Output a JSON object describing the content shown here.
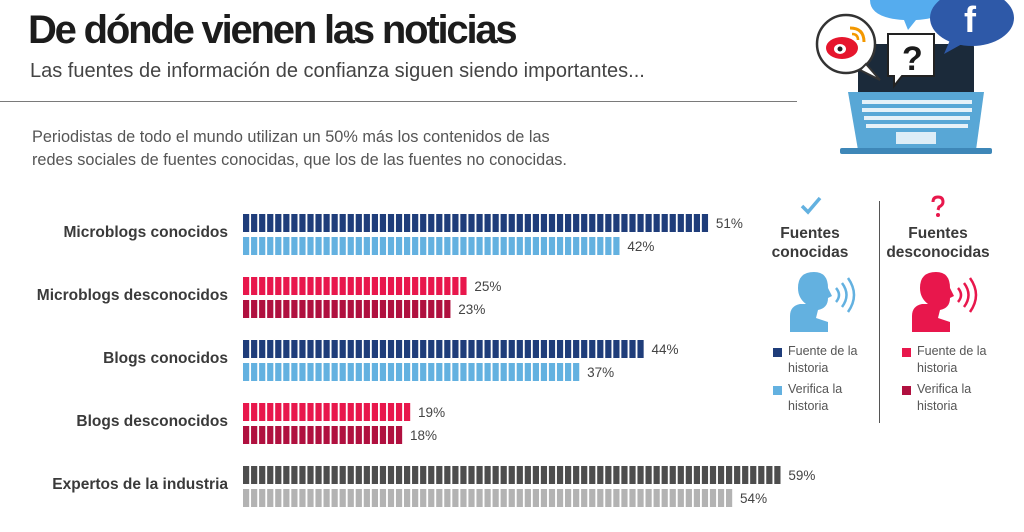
{
  "header": {
    "title": "De dónde vienen las noticias",
    "subtitle": "Las fuentes de información de confianza siguen siendo importantes..."
  },
  "intro": {
    "line1": "Periodistas de todo el mundo utilizan un 50% más los contenidos de las",
    "line2": "redes sociales de fuentes conocidas, que los de las fuentes no conocidas."
  },
  "legend": {
    "known": {
      "title_line1": "Fuentes",
      "title_line2": "conocidas",
      "icon": "check-icon",
      "item1_line1": "Fuente de la",
      "item1_line2": "historia",
      "item2_line1": "Verifica la",
      "item2_line2": "historia",
      "color_source": "#1f3d7a",
      "color_verify": "#63b1e0"
    },
    "unknown": {
      "title_line1": "Fuentes",
      "title_line2": "desconocidas",
      "icon": "question-icon",
      "item1_line1": "Fuente de la",
      "item1_line2": "historia",
      "item2_line1": "Verifica la",
      "item2_line2": "historia",
      "color_source": "#e8174c",
      "color_verify": "#b0103f"
    }
  },
  "illustration": {
    "icons": [
      "weibo-icon",
      "twitter-icon",
      "facebook-icon",
      "question-bubble-icon",
      "laptop-icon"
    ],
    "facebook_glyph": "f",
    "question_glyph": "?"
  },
  "chart_data": {
    "type": "bar",
    "orientation": "horizontal",
    "title": "De dónde vienen las noticias",
    "value_suffix": "%",
    "xlim": [
      0,
      60
    ],
    "series": [
      {
        "name": "Fuente de la historia"
      },
      {
        "name": "Verifica la historia"
      }
    ],
    "categories": [
      {
        "label": "Microblogs conocidos",
        "values": [
          51,
          42
        ],
        "colors": [
          "#1f3d7a",
          "#63b1e0"
        ]
      },
      {
        "label": "Microblogs desconocidos",
        "values": [
          25,
          23
        ],
        "colors": [
          "#e8174c",
          "#b0103f"
        ]
      },
      {
        "label": "Blogs conocidos",
        "values": [
          44,
          37
        ],
        "colors": [
          "#1f3d7a",
          "#63b1e0"
        ]
      },
      {
        "label": "Blogs desconocidos",
        "values": [
          19,
          18
        ],
        "colors": [
          "#e8174c",
          "#b0103f"
        ]
      },
      {
        "label": "Expertos de la industria",
        "values": [
          59,
          54
        ],
        "colors": [
          "#4d4d4d",
          "#b3b3b3"
        ]
      }
    ]
  }
}
